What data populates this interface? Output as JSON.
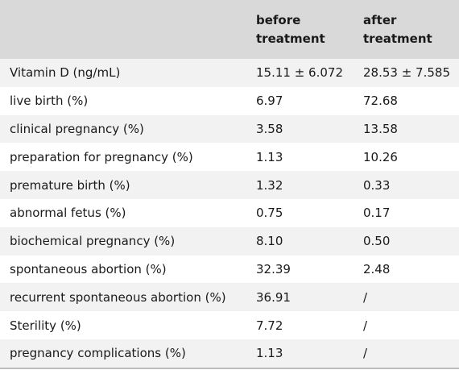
{
  "table": {
    "headers": [
      "",
      "before treatment",
      "after treatment"
    ],
    "rows": [
      {
        "label": "Vitamin D (ng/mL)",
        "before": "15.11 ± 6.072",
        "after": "28.53 ± 7.585"
      },
      {
        "label": "live birth (%)",
        "before": "6.97",
        "after": "72.68"
      },
      {
        "label": "clinical pregnancy (%)",
        "before": "3.58",
        "after": "13.58"
      },
      {
        "label": "preparation for pregnancy (%)",
        "before": "1.13",
        "after": "10.26"
      },
      {
        "label": "premature birth (%)",
        "before": "1.32",
        "after": "0.33"
      },
      {
        "label": "abnormal fetus (%)",
        "before": "0.75",
        "after": "0.17"
      },
      {
        "label": "biochemical pregnancy (%)",
        "before": "8.10",
        "after": "0.50"
      },
      {
        "label": "spontaneous abortion (%)",
        "before": "32.39",
        "after": "2.48"
      },
      {
        "label": "recurrent spontaneous abortion (%)",
        "before": "36.91",
        "after": "/"
      },
      {
        "label": "Sterility (%)",
        "before": "7.72",
        "after": "/"
      },
      {
        "label": "pregnancy complications (%)",
        "before": "1.13",
        "after": "/"
      }
    ]
  },
  "colors": {
    "header_bg": "#d9d9d9",
    "stripe_bg": "#f2f2f2",
    "text": "#1a1a1a"
  }
}
